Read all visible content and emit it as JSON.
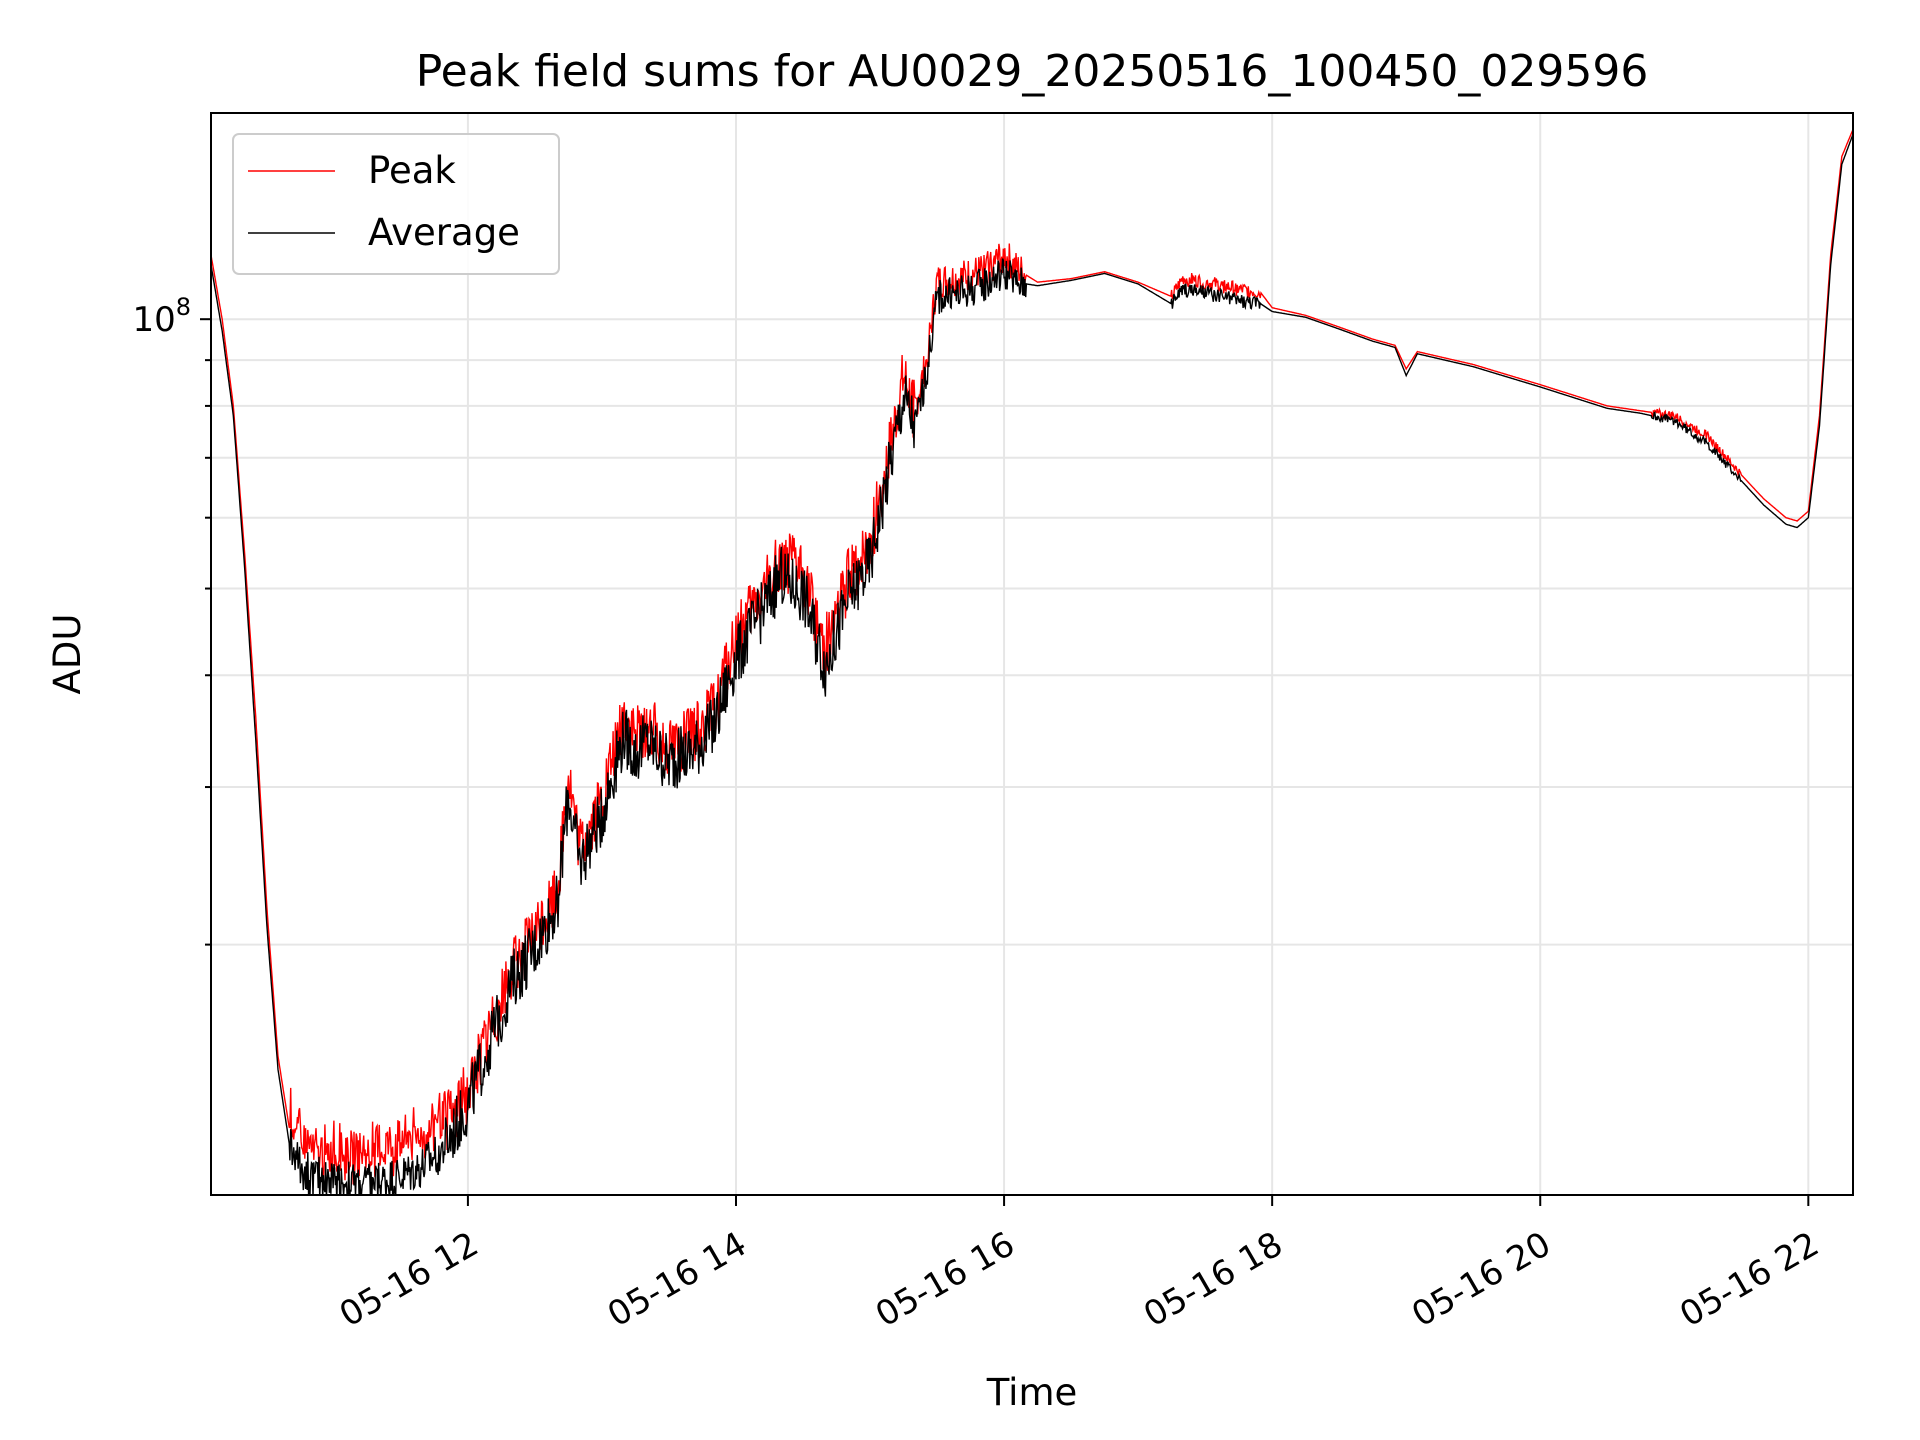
{
  "chart_data": {
    "type": "line",
    "title": "Peak field sums for AU0029_20250516_100450_029596",
    "xlabel": "Time",
    "ylabel": "ADU",
    "yscale": "log",
    "grid": true,
    "legend_position": "top-left",
    "xlim": [
      "05-16 10:05",
      "05-16 22:20"
    ],
    "ylim": [
      10500000,
      170000000
    ],
    "x_tick_labels": [
      "05-16 12",
      "05-16 14",
      "05-16 16",
      "05-16 18",
      "05-16 20",
      "05-16 22"
    ],
    "x_ticks": [
      "05-16 12:00",
      "05-16 14:00",
      "05-16 16:00",
      "05-16 18:00",
      "05-16 20:00",
      "05-16 22:00"
    ],
    "y_tick_labels": [
      {
        "base": "10",
        "exp": "8"
      }
    ],
    "y_ticks": [
      100000000
    ],
    "y_minor_ticks": [
      20000000,
      30000000,
      40000000,
      50000000,
      60000000,
      70000000,
      80000000,
      90000000
    ],
    "series": [
      {
        "name": "Peak",
        "color": "#ff0000",
        "x": [
          "05-16 10:05",
          "05-16 10:10",
          "05-16 10:15",
          "05-16 10:20",
          "05-16 10:25",
          "05-16 10:30",
          "05-16 10:35",
          "05-16 10:40",
          "05-16 10:45",
          "05-16 10:50",
          "05-16 11:00",
          "05-16 11:10",
          "05-16 11:20",
          "05-16 11:30",
          "05-16 11:40",
          "05-16 11:50",
          "05-16 12:00",
          "05-16 12:10",
          "05-16 12:20",
          "05-16 12:30",
          "05-16 12:40",
          "05-16 12:45",
          "05-16 12:50",
          "05-16 13:00",
          "05-16 13:10",
          "05-16 13:15",
          "05-16 13:20",
          "05-16 13:30",
          "05-16 13:40",
          "05-16 13:50",
          "05-16 14:00",
          "05-16 14:10",
          "05-16 14:20",
          "05-16 14:30",
          "05-16 14:40",
          "05-16 14:50",
          "05-16 15:00",
          "05-16 15:10",
          "05-16 15:15",
          "05-16 15:20",
          "05-16 15:25",
          "05-16 15:30",
          "05-16 15:40",
          "05-16 15:50",
          "05-16 16:00",
          "05-16 16:05",
          "05-16 16:15",
          "05-16 16:30",
          "05-16 16:45",
          "05-16 17:00",
          "05-16 17:15",
          "05-16 17:20",
          "05-16 17:30",
          "05-16 17:45",
          "05-16 17:55",
          "05-16 18:00",
          "05-16 18:15",
          "05-16 18:30",
          "05-16 18:45",
          "05-16 18:55",
          "05-16 19:00",
          "05-16 19:05",
          "05-16 19:30",
          "05-16 20:00",
          "05-16 20:30",
          "05-16 20:45",
          "05-16 21:00",
          "05-16 21:15",
          "05-16 21:30",
          "05-16 21:40",
          "05-16 21:50",
          "05-16 21:55",
          "05-16 22:00",
          "05-16 22:05",
          "05-16 22:10",
          "05-16 22:15",
          "05-16 22:20"
        ],
        "y": [
          118000000,
          100000000,
          80000000,
          55000000,
          36000000,
          22000000,
          15000000,
          12500000,
          11800000,
          11500000,
          11400000,
          11300000,
          11400000,
          11600000,
          12000000,
          12600000,
          13700000,
          16200000,
          18800000,
          20500000,
          23000000,
          31000000,
          25500000,
          29000000,
          36000000,
          34000000,
          35000000,
          33500000,
          34000000,
          36500000,
          44000000,
          48500000,
          54000000,
          52000000,
          43000000,
          51000000,
          56000000,
          74000000,
          86000000,
          79000000,
          89000000,
          110000000,
          111000000,
          113000000,
          118000000,
          114000000,
          110000000,
          111000000,
          113000000,
          110000000,
          106000000,
          111000000,
          110000000,
          108000000,
          107000000,
          103000000,
          101000000,
          98000000,
          95000000,
          93500000,
          88000000,
          92000000,
          89000000,
          84500000,
          80000000,
          79000000,
          78000000,
          74000000,
          67000000,
          63000000,
          60000000,
          59500000,
          61000000,
          78000000,
          118000000,
          152000000,
          163000000
        ]
      },
      {
        "name": "Average",
        "color": "#000000",
        "x": [
          "05-16 10:05",
          "05-16 10:10",
          "05-16 10:15",
          "05-16 10:20",
          "05-16 10:25",
          "05-16 10:30",
          "05-16 10:35",
          "05-16 10:40",
          "05-16 10:45",
          "05-16 10:50",
          "05-16 11:00",
          "05-16 11:10",
          "05-16 11:20",
          "05-16 11:30",
          "05-16 11:40",
          "05-16 11:50",
          "05-16 12:00",
          "05-16 12:10",
          "05-16 12:20",
          "05-16 12:30",
          "05-16 12:40",
          "05-16 12:45",
          "05-16 12:50",
          "05-16 13:00",
          "05-16 13:10",
          "05-16 13:15",
          "05-16 13:20",
          "05-16 13:30",
          "05-16 13:40",
          "05-16 13:50",
          "05-16 14:00",
          "05-16 14:10",
          "05-16 14:20",
          "05-16 14:30",
          "05-16 14:40",
          "05-16 14:50",
          "05-16 15:00",
          "05-16 15:10",
          "05-16 15:15",
          "05-16 15:20",
          "05-16 15:25",
          "05-16 15:30",
          "05-16 15:40",
          "05-16 15:50",
          "05-16 16:00",
          "05-16 16:05",
          "05-16 16:15",
          "05-16 16:30",
          "05-16 16:45",
          "05-16 17:00",
          "05-16 17:15",
          "05-16 17:20",
          "05-16 17:30",
          "05-16 17:45",
          "05-16 17:55",
          "05-16 18:00",
          "05-16 18:15",
          "05-16 18:30",
          "05-16 18:45",
          "05-16 18:55",
          "05-16 19:00",
          "05-16 19:05",
          "05-16 19:30",
          "05-16 20:00",
          "05-16 20:30",
          "05-16 20:45",
          "05-16 21:00",
          "05-16 21:15",
          "05-16 21:30",
          "05-16 21:40",
          "05-16 21:50",
          "05-16 21:55",
          "05-16 22:00",
          "05-16 22:05",
          "05-16 22:10",
          "05-16 22:15",
          "05-16 22:20"
        ],
        "y": [
          115000000,
          97000000,
          78000000,
          53000000,
          34000000,
          21000000,
          14500000,
          12000000,
          11300000,
          11000000,
          10900000,
          10800000,
          10850000,
          11000000,
          11300000,
          11900000,
          13200000,
          15600000,
          18200000,
          19800000,
          22200000,
          29500000,
          24500000,
          28000000,
          34500000,
          32500000,
          33800000,
          32000000,
          32800000,
          35000000,
          42000000,
          46500000,
          51500000,
          49500000,
          41000000,
          48500000,
          53500000,
          71000000,
          82000000,
          76000000,
          86000000,
          106000000,
          107000000,
          109000000,
          113000000,
          110000000,
          109000000,
          110500000,
          112500000,
          109500000,
          104000000,
          108000000,
          107000000,
          105000000,
          104000000,
          102000000,
          100500000,
          97500000,
          94500000,
          93000000,
          86500000,
          91500000,
          88500000,
          84000000,
          79500000,
          78500000,
          77000000,
          72500000,
          66000000,
          62000000,
          59000000,
          58500000,
          60000000,
          76000000,
          115000000,
          149000000,
          161000000
        ]
      }
    ]
  }
}
